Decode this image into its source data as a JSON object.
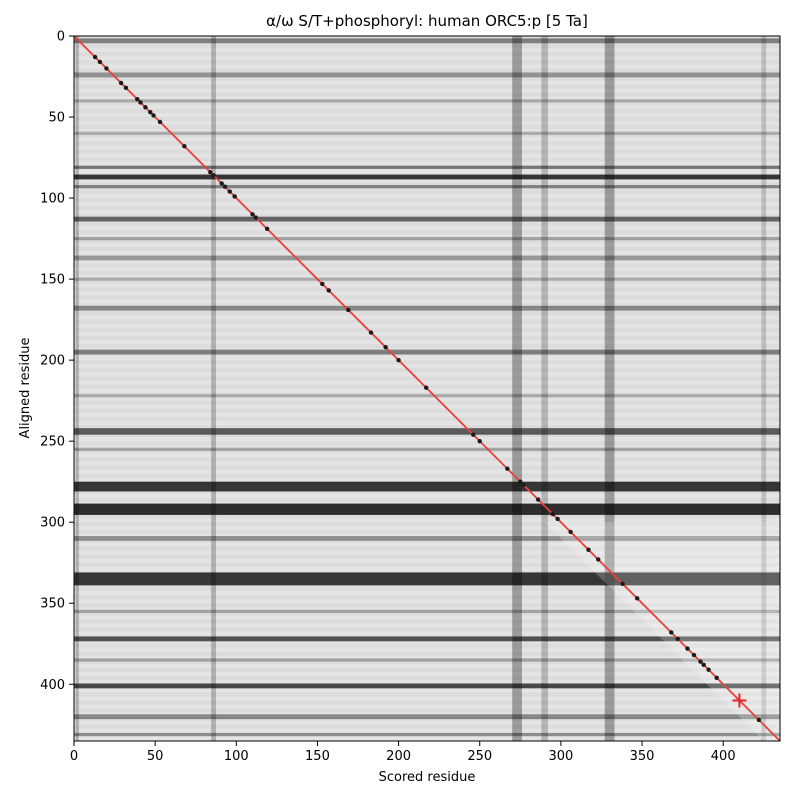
{
  "chart_data": {
    "type": "heatmap",
    "title": "α/ω S/T+phosphoryl: human ORC5:p [5 Ta]",
    "xlabel": "Scored residue",
    "ylabel": "Aligned residue",
    "xlim": [
      0,
      435
    ],
    "ylim": [
      435,
      0
    ],
    "x_ticks": [
      0,
      50,
      100,
      150,
      200,
      250,
      300,
      350,
      400
    ],
    "y_ticks": [
      0,
      50,
      100,
      150,
      200,
      250,
      300,
      350,
      400
    ],
    "colormap": "grayscale (dark = high)",
    "diagonal_color": "#e8403a",
    "marker_color": "#e8202a",
    "point_color": "#1a1a1a",
    "dark_rows": [
      {
        "center": 3,
        "width": 3,
        "level": 0.55
      },
      {
        "center": 24,
        "width": 3,
        "level": 0.45
      },
      {
        "center": 40,
        "width": 2,
        "level": 0.3
      },
      {
        "center": 60,
        "width": 2,
        "level": 0.3
      },
      {
        "center": 81,
        "width": 2,
        "level": 0.6
      },
      {
        "center": 87,
        "width": 3,
        "level": 0.95
      },
      {
        "center": 93,
        "width": 2,
        "level": 0.55
      },
      {
        "center": 113,
        "width": 3,
        "level": 0.7
      },
      {
        "center": 125,
        "width": 2,
        "level": 0.35
      },
      {
        "center": 137,
        "width": 3,
        "level": 0.4
      },
      {
        "center": 150,
        "width": 2,
        "level": 0.3
      },
      {
        "center": 168,
        "width": 3,
        "level": 0.5
      },
      {
        "center": 195,
        "width": 3,
        "level": 0.55
      },
      {
        "center": 222,
        "width": 2,
        "level": 0.3
      },
      {
        "center": 244,
        "width": 4,
        "level": 0.75
      },
      {
        "center": 255,
        "width": 2,
        "level": 0.35
      },
      {
        "center": 278,
        "width": 6,
        "level": 0.95
      },
      {
        "center": 292,
        "width": 7,
        "level": 1.0
      },
      {
        "center": 310,
        "width": 3,
        "level": 0.45
      },
      {
        "center": 335,
        "width": 8,
        "level": 0.95
      },
      {
        "center": 355,
        "width": 2,
        "level": 0.35
      },
      {
        "center": 372,
        "width": 3,
        "level": 0.8
      },
      {
        "center": 385,
        "width": 2,
        "level": 0.35
      },
      {
        "center": 401,
        "width": 3,
        "level": 0.85
      },
      {
        "center": 420,
        "width": 3,
        "level": 0.5
      },
      {
        "center": 431,
        "width": 2,
        "level": 0.45
      }
    ],
    "dark_cols": [
      {
        "center": 2,
        "width": 2,
        "level": 0.5
      },
      {
        "center": 86,
        "width": 3,
        "level": 0.5
      },
      {
        "center": 273,
        "width": 6,
        "level": 0.7
      },
      {
        "center": 290,
        "width": 4,
        "level": 0.45
      },
      {
        "center": 330,
        "width": 6,
        "level": 0.7
      },
      {
        "center": 425,
        "width": 3,
        "level": 0.35
      }
    ],
    "diagonal_points": [
      13,
      16,
      20,
      29,
      32,
      39,
      41,
      44,
      47,
      49,
      53,
      68,
      84,
      86,
      91,
      93,
      96,
      99,
      110,
      112,
      119,
      153,
      157,
      169,
      183,
      192,
      200,
      217,
      246,
      250,
      267,
      275,
      277,
      286,
      295,
      298,
      306,
      317,
      323,
      338,
      347,
      368,
      372,
      378,
      382,
      386,
      388,
      391,
      396,
      422
    ],
    "highlight_point": {
      "x": 410,
      "y": 410
    }
  }
}
